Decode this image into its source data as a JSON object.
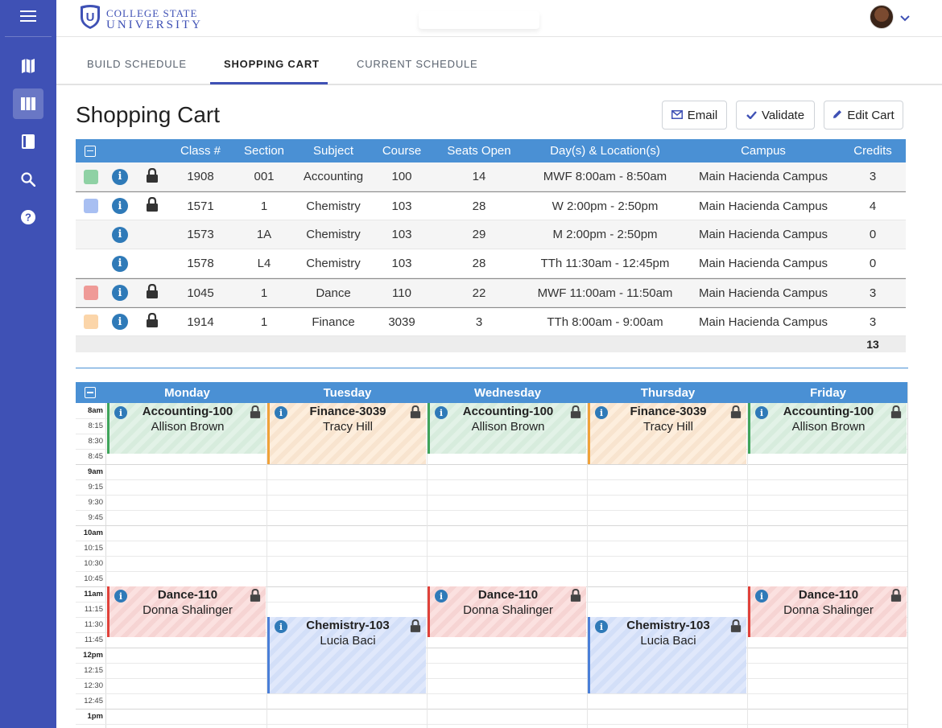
{
  "brand": {
    "line1": "COLLEGE STATE",
    "line2": "UNIVERSITY",
    "logo_letter": "U"
  },
  "sidebar": {
    "items": [
      "menu-icon",
      "map-icon",
      "columns-icon",
      "book-icon",
      "search-icon",
      "help-icon"
    ],
    "active": "columns-icon"
  },
  "tabs": [
    {
      "label": "BUILD SCHEDULE"
    },
    {
      "label": "SHOPPING CART"
    },
    {
      "label": "CURRENT SCHEDULE"
    }
  ],
  "page": {
    "title": "Shopping Cart"
  },
  "actions": {
    "email": "Email",
    "validate": "Validate",
    "edit": "Edit Cart"
  },
  "cart": {
    "headers": [
      "Class #",
      "Section",
      "Subject",
      "Course",
      "Seats Open",
      "Day(s) & Location(s)",
      "Campus",
      "Credits"
    ],
    "rows": [
      {
        "swatch": "#8fd1a4",
        "lock": true,
        "class_no": "1908",
        "section": "001",
        "subject": "Accounting",
        "course": "100",
        "seats": "14",
        "days": "MWF 8:00am - 8:50am",
        "campus": "Main Hacienda Campus",
        "credits": "3"
      },
      {
        "swatch": "#a8bff2",
        "lock": true,
        "class_no": "1571",
        "section": "1",
        "subject": "Chemistry",
        "course": "103",
        "seats": "28",
        "days": "W 2:00pm - 2:50pm",
        "campus": "Main Hacienda Campus",
        "credits": "4"
      },
      {
        "swatch": "",
        "lock": false,
        "class_no": "1573",
        "section": "1A",
        "subject": "Chemistry",
        "course": "103",
        "seats": "29",
        "days": "M 2:00pm - 2:50pm",
        "campus": "Main Hacienda Campus",
        "credits": "0"
      },
      {
        "swatch": "",
        "lock": false,
        "class_no": "1578",
        "section": "L4",
        "subject": "Chemistry",
        "course": "103",
        "seats": "28",
        "days": "TTh 11:30am - 12:45pm",
        "campus": "Main Hacienda Campus",
        "credits": "0"
      },
      {
        "swatch": "#ef9a97",
        "lock": true,
        "class_no": "1045",
        "section": "1",
        "subject": "Dance",
        "course": "110",
        "seats": "22",
        "days": "MWF 11:00am - 11:50am",
        "campus": "Main Hacienda Campus",
        "credits": "3"
      },
      {
        "swatch": "#fbd5a9",
        "lock": true,
        "class_no": "1914",
        "section": "1",
        "subject": "Finance",
        "course": "3039",
        "seats": "3",
        "days": "TTh 8:00am - 9:00am",
        "campus": "Main Hacienda Campus",
        "credits": "3"
      }
    ],
    "total_credits": "13"
  },
  "calendar": {
    "days": [
      "Monday",
      "Tuesday",
      "Wednesday",
      "Thursday",
      "Friday"
    ],
    "times": [
      "8am",
      "8:15",
      "8:30",
      "8:45",
      "9am",
      "9:15",
      "9:30",
      "9:45",
      "10am",
      "10:15",
      "10:30",
      "10:45",
      "11am",
      "11:15",
      "11:30",
      "11:45",
      "12pm",
      "12:15",
      "12:30",
      "12:45",
      "1pm"
    ],
    "events": [
      {
        "day": 0,
        "start": "8:00",
        "end": "8:50",
        "title": "Accounting-100",
        "instructor": "Allison Brown",
        "color": "green"
      },
      {
        "day": 1,
        "start": "8:00",
        "end": "9:00",
        "title": "Finance-3039",
        "instructor": "Tracy Hill",
        "color": "orange"
      },
      {
        "day": 2,
        "start": "8:00",
        "end": "8:50",
        "title": "Accounting-100",
        "instructor": "Allison Brown",
        "color": "green"
      },
      {
        "day": 3,
        "start": "8:00",
        "end": "9:00",
        "title": "Finance-3039",
        "instructor": "Tracy Hill",
        "color": "orange"
      },
      {
        "day": 4,
        "start": "8:00",
        "end": "8:50",
        "title": "Accounting-100",
        "instructor": "Allison Brown",
        "color": "green"
      },
      {
        "day": 0,
        "start": "11:00",
        "end": "11:50",
        "title": "Dance-110",
        "instructor": "Donna Shalinger",
        "color": "red"
      },
      {
        "day": 2,
        "start": "11:00",
        "end": "11:50",
        "title": "Dance-110",
        "instructor": "Donna Shalinger",
        "color": "red"
      },
      {
        "day": 4,
        "start": "11:00",
        "end": "11:50",
        "title": "Dance-110",
        "instructor": "Donna Shalinger",
        "color": "red"
      },
      {
        "day": 1,
        "start": "11:30",
        "end": "12:45",
        "title": "Chemistry-103",
        "instructor": "Lucia Baci",
        "color": "blue"
      },
      {
        "day": 3,
        "start": "11:30",
        "end": "12:45",
        "title": "Chemistry-103",
        "instructor": "Lucia Baci",
        "color": "blue"
      }
    ]
  }
}
